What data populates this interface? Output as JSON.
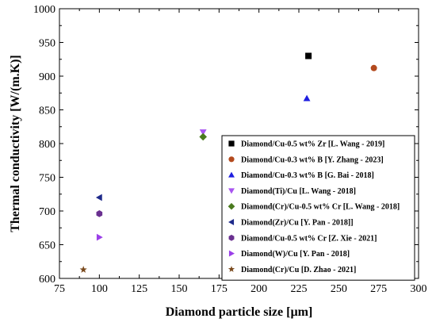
{
  "chart_data": {
    "type": "scatter",
    "title": "",
    "xlabel": "Diamond particle size [µm]",
    "ylabel": "Thermal conductivity [W/(m.K)]",
    "xlim": [
      75,
      300
    ],
    "ylim": [
      600,
      1000
    ],
    "xticks": [
      75,
      100,
      125,
      150,
      175,
      200,
      225,
      250,
      275,
      300
    ],
    "yticks": [
      600,
      650,
      700,
      750,
      800,
      850,
      900,
      950,
      1000
    ],
    "grid": false,
    "legend_position": "right",
    "series": [
      {
        "name": "Diamond/Cu-0.5 wt% Zr [L. Wang - 2019]",
        "marker": "square",
        "color": "#000000",
        "points": [
          [
            231,
            930
          ]
        ]
      },
      {
        "name": "Diamond/Cu-0.3 wt% B [Y. Zhang - 2023]",
        "marker": "circle",
        "color": "#b34a1e",
        "points": [
          [
            272,
            912
          ]
        ]
      },
      {
        "name": "Diamond/Cu-0.3 wt% B [G. Bai - 2018]",
        "marker": "triangle-up",
        "color": "#1f1fe0",
        "points": [
          [
            230,
            867
          ]
        ]
      },
      {
        "name": "Diamond(Ti)/Cu [L. Wang - 2018]",
        "marker": "triangle-down",
        "color": "#a855f0",
        "points": [
          [
            165,
            817
          ]
        ]
      },
      {
        "name": "Diamond(Cr)/Cu-0.5 wt% Cr [L. Wang - 2018]",
        "marker": "diamond",
        "color": "#4a7a1e",
        "points": [
          [
            165,
            810
          ]
        ]
      },
      {
        "name": "Diamond(Zr)/Cu [Y. Pan - 2018]]",
        "marker": "triangle-left",
        "color": "#1e2a8a",
        "points": [
          [
            100,
            720
          ]
        ]
      },
      {
        "name": "Diamond/Cu-0.5 wt% Cr [Z. Xie - 2021]",
        "marker": "hexagon",
        "color": "#6a3090",
        "points": [
          [
            100,
            696
          ]
        ]
      },
      {
        "name": "Diamond(W)/Cu [Y. Pan - 2018]",
        "marker": "triangle-right",
        "color": "#9b3fe8",
        "points": [
          [
            100,
            661
          ]
        ]
      },
      {
        "name": "Diamond(Cr)/Cu [D. Zhao - 2021]",
        "marker": "star",
        "color": "#7a4a1e",
        "points": [
          [
            90,
            613
          ]
        ]
      }
    ]
  }
}
